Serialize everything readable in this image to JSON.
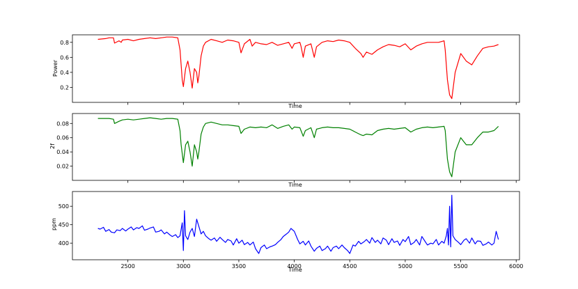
{
  "chart_data": [
    {
      "type": "line",
      "xlabel": "Time",
      "ylabel": "Power",
      "xlim": [
        2000,
        6030
      ],
      "ylim": [
        0.0,
        0.9
      ],
      "yticks": [
        "0.2",
        "0.4",
        "0.6",
        "0.8"
      ],
      "ytick_values": [
        0.2,
        0.4,
        0.6,
        0.8
      ],
      "xticks": [
        "2500",
        "3000",
        "3500",
        "4000",
        "4500",
        "5000",
        "5500",
        "6000"
      ],
      "xtick_values": [
        2500,
        3000,
        3500,
        4000,
        4500,
        5000,
        5500,
        6000
      ],
      "show_xtick_labels": false,
      "grid": false,
      "color": "#ff0000",
      "series": [
        {
          "x": [
            2230,
            2300,
            2330,
            2370,
            2380,
            2420,
            2440,
            2450,
            2500,
            2550,
            2600,
            2650,
            2700,
            2750,
            2800,
            2850,
            2900,
            2950,
            2970,
            2980,
            2990,
            3000,
            3020,
            3040,
            3060,
            3080,
            3100,
            3120,
            3130,
            3140,
            3160,
            3180,
            3200,
            3250,
            3300,
            3350,
            3400,
            3450,
            3500,
            3520,
            3550,
            3600,
            3620,
            3650,
            3700,
            3750,
            3800,
            3850,
            3900,
            3950,
            3980,
            4000,
            4050,
            4060,
            4080,
            4100,
            4150,
            4180,
            4200,
            4250,
            4300,
            4350,
            4400,
            4450,
            4500,
            4550,
            4600,
            4620,
            4650,
            4700,
            4750,
            4800,
            4850,
            4900,
            4950,
            5000,
            5050,
            5100,
            5150,
            5200,
            5250,
            5300,
            5350,
            5360,
            5380,
            5400,
            5420,
            5450,
            5500,
            5550,
            5600,
            5650,
            5700,
            5750,
            5800,
            5840
          ],
          "y": [
            0.84,
            0.85,
            0.86,
            0.86,
            0.79,
            0.82,
            0.8,
            0.83,
            0.84,
            0.82,
            0.84,
            0.85,
            0.86,
            0.85,
            0.86,
            0.87,
            0.87,
            0.86,
            0.7,
            0.5,
            0.3,
            0.21,
            0.45,
            0.55,
            0.4,
            0.19,
            0.45,
            0.4,
            0.26,
            0.35,
            0.62,
            0.75,
            0.8,
            0.84,
            0.82,
            0.8,
            0.83,
            0.82,
            0.8,
            0.66,
            0.78,
            0.84,
            0.75,
            0.8,
            0.78,
            0.77,
            0.8,
            0.76,
            0.78,
            0.8,
            0.72,
            0.78,
            0.8,
            0.75,
            0.6,
            0.75,
            0.78,
            0.6,
            0.74,
            0.8,
            0.82,
            0.81,
            0.83,
            0.82,
            0.8,
            0.72,
            0.65,
            0.6,
            0.67,
            0.64,
            0.7,
            0.74,
            0.77,
            0.76,
            0.74,
            0.78,
            0.7,
            0.75,
            0.78,
            0.8,
            0.8,
            0.8,
            0.82,
            0.7,
            0.3,
            0.1,
            0.05,
            0.4,
            0.65,
            0.55,
            0.5,
            0.62,
            0.72,
            0.74,
            0.75,
            0.77
          ]
        }
      ]
    },
    {
      "type": "line",
      "xlabel": "Time",
      "ylabel": "2f",
      "xlim": [
        2000,
        6030
      ],
      "ylim": [
        0.0,
        0.094
      ],
      "yticks": [
        "0.02",
        "0.04",
        "0.06",
        "0.08"
      ],
      "ytick_values": [
        0.02,
        0.04,
        0.06,
        0.08
      ],
      "xticks": [
        "2500",
        "3000",
        "3500",
        "4000",
        "4500",
        "5000",
        "5500",
        "6000"
      ],
      "xtick_values": [
        2500,
        3000,
        3500,
        4000,
        4500,
        5000,
        5500,
        6000
      ],
      "show_xtick_labels": false,
      "grid": false,
      "color": "#008000",
      "series": [
        {
          "x": [
            2230,
            2300,
            2330,
            2370,
            2380,
            2420,
            2450,
            2500,
            2550,
            2600,
            2650,
            2700,
            2750,
            2800,
            2850,
            2900,
            2950,
            2970,
            2980,
            3000,
            3020,
            3040,
            3060,
            3080,
            3100,
            3120,
            3130,
            3140,
            3160,
            3180,
            3200,
            3250,
            3300,
            3350,
            3400,
            3450,
            3500,
            3520,
            3550,
            3600,
            3650,
            3700,
            3750,
            3800,
            3850,
            3900,
            3950,
            3980,
            4000,
            4050,
            4080,
            4100,
            4150,
            4180,
            4200,
            4250,
            4300,
            4350,
            4400,
            4450,
            4500,
            4550,
            4600,
            4620,
            4650,
            4700,
            4750,
            4800,
            4850,
            4900,
            4950,
            5000,
            5050,
            5100,
            5150,
            5200,
            5250,
            5300,
            5350,
            5360,
            5380,
            5400,
            5420,
            5450,
            5500,
            5550,
            5600,
            5650,
            5700,
            5750,
            5800,
            5840
          ],
          "y": [
            0.087,
            0.087,
            0.087,
            0.086,
            0.08,
            0.083,
            0.085,
            0.086,
            0.085,
            0.086,
            0.087,
            0.088,
            0.087,
            0.086,
            0.087,
            0.087,
            0.086,
            0.07,
            0.05,
            0.025,
            0.05,
            0.055,
            0.04,
            0.02,
            0.05,
            0.04,
            0.03,
            0.04,
            0.065,
            0.075,
            0.08,
            0.082,
            0.08,
            0.078,
            0.078,
            0.077,
            0.076,
            0.066,
            0.072,
            0.075,
            0.074,
            0.075,
            0.074,
            0.078,
            0.073,
            0.076,
            0.078,
            0.072,
            0.075,
            0.074,
            0.062,
            0.07,
            0.074,
            0.06,
            0.072,
            0.074,
            0.075,
            0.074,
            0.074,
            0.073,
            0.072,
            0.068,
            0.064,
            0.063,
            0.065,
            0.064,
            0.07,
            0.072,
            0.073,
            0.072,
            0.073,
            0.074,
            0.068,
            0.072,
            0.074,
            0.075,
            0.074,
            0.075,
            0.076,
            0.07,
            0.03,
            0.012,
            0.005,
            0.04,
            0.06,
            0.05,
            0.05,
            0.06,
            0.068,
            0.068,
            0.07,
            0.076
          ]
        }
      ]
    },
    {
      "type": "line",
      "xlabel": "Time",
      "ylabel": "ppm",
      "xlim": [
        2000,
        6030
      ],
      "ylim": [
        355,
        540
      ],
      "yticks": [
        "400",
        "450",
        "500"
      ],
      "ytick_values": [
        400,
        450,
        500
      ],
      "xticks": [
        "2500",
        "3000",
        "3500",
        "4000",
        "4500",
        "5000",
        "5500",
        "6000"
      ],
      "xtick_values": [
        2500,
        3000,
        3500,
        4000,
        4500,
        5000,
        5500,
        6000
      ],
      "show_xtick_labels": true,
      "grid": false,
      "color": "#0000ff",
      "series": [
        {
          "x": [
            2230,
            2250,
            2280,
            2300,
            2330,
            2350,
            2380,
            2400,
            2430,
            2450,
            2480,
            2500,
            2530,
            2550,
            2580,
            2600,
            2630,
            2650,
            2680,
            2700,
            2730,
            2750,
            2780,
            2800,
            2830,
            2850,
            2880,
            2900,
            2930,
            2950,
            2970,
            2990,
            3000,
            3010,
            3020,
            3040,
            3060,
            3080,
            3100,
            3120,
            3140,
            3160,
            3180,
            3200,
            3230,
            3250,
            3280,
            3300,
            3330,
            3350,
            3380,
            3400,
            3430,
            3450,
            3480,
            3500,
            3530,
            3550,
            3580,
            3600,
            3630,
            3650,
            3680,
            3700,
            3730,
            3750,
            3780,
            3800,
            3830,
            3850,
            3880,
            3900,
            3930,
            3950,
            3970,
            4000,
            4030,
            4050,
            4080,
            4100,
            4130,
            4150,
            4180,
            4200,
            4230,
            4250,
            4280,
            4300,
            4330,
            4350,
            4380,
            4400,
            4430,
            4450,
            4480,
            4500,
            4530,
            4550,
            4580,
            4600,
            4630,
            4650,
            4680,
            4700,
            4730,
            4750,
            4780,
            4800,
            4830,
            4850,
            4880,
            4900,
            4930,
            4950,
            4980,
            5000,
            5030,
            5050,
            5080,
            5100,
            5130,
            5150,
            5180,
            5200,
            5230,
            5250,
            5280,
            5300,
            5330,
            5350,
            5370,
            5380,
            5390,
            5400,
            5410,
            5420,
            5430,
            5450,
            5480,
            5500,
            5530,
            5550,
            5580,
            5600,
            5630,
            5650,
            5680,
            5700,
            5730,
            5750,
            5780,
            5800,
            5820,
            5840
          ],
          "y": [
            440,
            438,
            443,
            432,
            437,
            430,
            428,
            436,
            434,
            440,
            433,
            438,
            444,
            436,
            442,
            440,
            447,
            435,
            438,
            441,
            444,
            430,
            432,
            436,
            425,
            430,
            422,
            418,
            423,
            415,
            420,
            455,
            380,
            488,
            420,
            410,
            430,
            440,
            418,
            465,
            445,
            425,
            432,
            420,
            412,
            408,
            414,
            405,
            416,
            410,
            402,
            410,
            406,
            395,
            412,
            400,
            408,
            396,
            402,
            395,
            403,
            385,
            372,
            388,
            395,
            385,
            390,
            392,
            396,
            402,
            410,
            418,
            425,
            430,
            440,
            432,
            410,
            398,
            405,
            395,
            406,
            392,
            378,
            386,
            392,
            380,
            385,
            392,
            378,
            388,
            392,
            385,
            395,
            388,
            380,
            372,
            395,
            392,
            405,
            398,
            404,
            410,
            400,
            415,
            402,
            408,
            398,
            414,
            408,
            396,
            412,
            402,
            406,
            394,
            410,
            404,
            418,
            396,
            402,
            410,
            395,
            418,
            404,
            395,
            400,
            398,
            410,
            395,
            405,
            400,
            420,
            440,
            395,
            500,
            390,
            530,
            420,
            410,
            402,
            396,
            408,
            412,
            400,
            414,
            398,
            406,
            405,
            394,
            398,
            403,
            395,
            400,
            432,
            410
          ]
        }
      ]
    }
  ]
}
